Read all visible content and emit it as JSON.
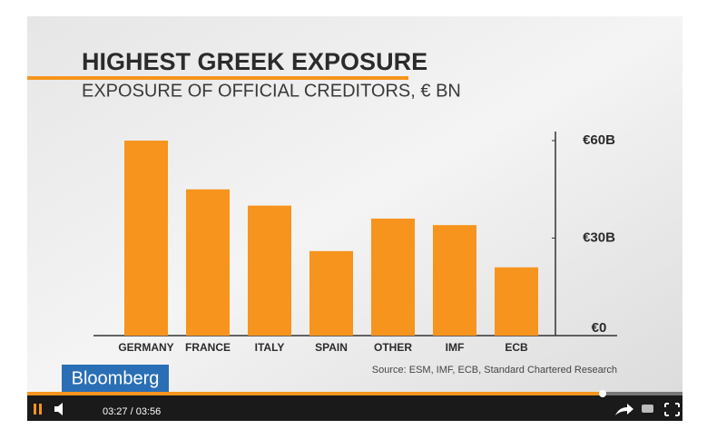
{
  "chart_data": {
    "type": "bar",
    "title": "HIGHEST GREEK EXPOSURE",
    "subtitle": "EXPOSURE OF OFFICIAL CREDITORS, € BN",
    "categories": [
      "GERMANY",
      "FRANCE",
      "ITALY",
      "SPAIN",
      "OTHER",
      "IMF",
      "ECB"
    ],
    "values": [
      60,
      45,
      40,
      26,
      36,
      34,
      21
    ],
    "color": "#f7941d",
    "ylim": [
      0,
      60
    ],
    "yticks": [
      {
        "value": 0,
        "label": "€0"
      },
      {
        "value": 30,
        "label": "€30B"
      },
      {
        "value": 60,
        "label": "€60B"
      }
    ],
    "source": "Source: ESM, IMF, ECB, Standard Chartered Research"
  },
  "brand": "Bloomberg",
  "player": {
    "time": "03:27 / 03:56"
  }
}
